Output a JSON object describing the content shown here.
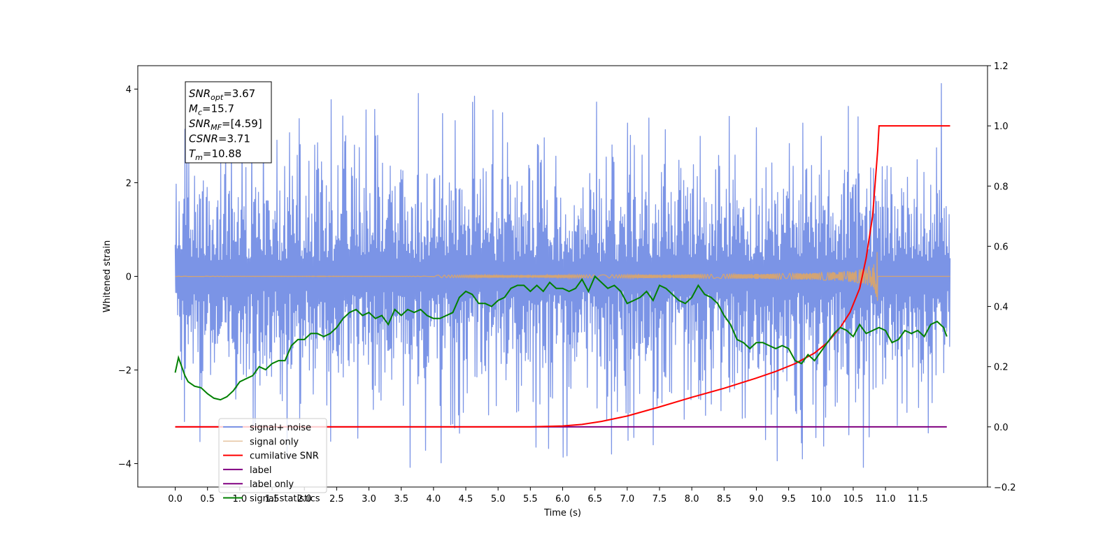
{
  "chart_data": {
    "type": "line",
    "xlabel": "Time (s)",
    "ylabel": "Whitened strain",
    "xlim": [
      -0.58,
      12.58
    ],
    "ylim": [
      -4.5,
      4.5
    ],
    "ylim_right": [
      -0.2,
      1.2
    ],
    "x_ticks": [
      0.0,
      0.5,
      1.0,
      1.5,
      2.0,
      2.5,
      3.0,
      3.5,
      4.0,
      4.5,
      5.0,
      5.5,
      6.0,
      6.5,
      7.0,
      7.5,
      8.0,
      8.5,
      9.0,
      9.5,
      10.0,
      10.5,
      11.0,
      11.5
    ],
    "x_tick_labels": [
      "0.0",
      "0.5",
      "1.0",
      "1.5",
      "2.0",
      "2.5",
      "3.0",
      "3.5",
      "4.0",
      "4.5",
      "5.0",
      "5.5",
      "6.0",
      "6.5",
      "7.0",
      "7.5",
      "8.0",
      "8.5",
      "9.0",
      "9.5",
      "10.0",
      "10.5",
      "11.0",
      "11.5"
    ],
    "y_ticks": [
      -4,
      -2,
      0,
      2,
      4
    ],
    "y_tick_labels": [
      "−4",
      "−2",
      "0",
      "2",
      "4"
    ],
    "y2_ticks": [
      -0.2,
      0.0,
      0.2,
      0.4,
      0.6,
      0.8,
      1.0,
      1.2
    ],
    "y2_tick_labels": [
      "−0.2",
      "0.0",
      "0.2",
      "0.4",
      "0.6",
      "0.8",
      "1.0",
      "1.2"
    ],
    "grid": false,
    "legend_position": "lower-left",
    "annotation": {
      "lines": [
        {
          "sym": "SNR",
          "sub": "opt",
          "rest": "=3.67"
        },
        {
          "sym": "M",
          "sub": "c",
          "rest": "=15.7"
        },
        {
          "sym": "SNR",
          "sub": "MF",
          "rest": "=[4.59]"
        },
        {
          "sym": "CSNR",
          "sub": "",
          "rest": "=3.71"
        },
        {
          "sym": "T",
          "sub": "m",
          "rest": "=10.88"
        }
      ]
    },
    "series": [
      {
        "name": "signal+ noise",
        "color": "#7b94e6",
        "axis": "left",
        "kind": "noise",
        "x_range": [
          0.0,
          12.0
        ],
        "envelope_upper": 2.6,
        "envelope_lower": -2.6,
        "max": 4.12,
        "min": -4.08
      },
      {
        "name": "signal only",
        "color": "#d8a46e",
        "axis": "left",
        "kind": "chirp",
        "x_range": [
          0.0,
          12.0
        ],
        "merger_time": 10.88,
        "peak_amplitude": 0.65
      },
      {
        "name": "cumilative SNR",
        "color": "#ff0000",
        "axis": "right",
        "x": [
          0.0,
          5.5,
          6.0,
          6.3,
          6.6,
          7.0,
          7.5,
          8.0,
          8.5,
          9.0,
          9.3,
          9.6,
          9.9,
          10.1,
          10.3,
          10.45,
          10.6,
          10.7,
          10.8,
          10.88,
          10.9,
          11.0,
          12.0
        ],
        "y": [
          0.0,
          0.0,
          0.003,
          0.008,
          0.018,
          0.036,
          0.066,
          0.098,
          0.128,
          0.162,
          0.184,
          0.21,
          0.245,
          0.28,
          0.33,
          0.38,
          0.46,
          0.56,
          0.7,
          0.92,
          1.0,
          1.0,
          1.0
        ]
      },
      {
        "name": "label",
        "color": "#800080",
        "axis": "right",
        "x": [
          0.0,
          11.95
        ],
        "y": [
          0.0,
          0.0
        ]
      },
      {
        "name": "label only",
        "color": "#800080",
        "axis": "right",
        "hidden_in_plot": true
      },
      {
        "name": "signal statistics",
        "color": "#008000",
        "axis": "right",
        "x": [
          0.0,
          0.05,
          0.1,
          0.15,
          0.2,
          0.3,
          0.4,
          0.5,
          0.6,
          0.7,
          0.8,
          0.9,
          1.0,
          1.1,
          1.2,
          1.3,
          1.4,
          1.5,
          1.6,
          1.7,
          1.8,
          1.9,
          2.0,
          2.1,
          2.2,
          2.3,
          2.4,
          2.5,
          2.6,
          2.7,
          2.8,
          2.9,
          3.0,
          3.1,
          3.2,
          3.3,
          3.4,
          3.5,
          3.6,
          3.7,
          3.8,
          3.9,
          4.0,
          4.1,
          4.2,
          4.3,
          4.4,
          4.5,
          4.6,
          4.7,
          4.8,
          4.9,
          5.0,
          5.1,
          5.2,
          5.3,
          5.4,
          5.5,
          5.6,
          5.7,
          5.8,
          5.9,
          6.0,
          6.1,
          6.2,
          6.3,
          6.4,
          6.5,
          6.6,
          6.7,
          6.8,
          6.9,
          7.0,
          7.1,
          7.2,
          7.3,
          7.4,
          7.5,
          7.6,
          7.7,
          7.8,
          7.9,
          8.0,
          8.1,
          8.2,
          8.3,
          8.4,
          8.5,
          8.6,
          8.7,
          8.8,
          8.9,
          9.0,
          9.1,
          9.2,
          9.3,
          9.4,
          9.5,
          9.6,
          9.7,
          9.8,
          9.9,
          10.0,
          10.1,
          10.2,
          10.3,
          10.4,
          10.5,
          10.6,
          10.7,
          10.8,
          10.9,
          11.0,
          11.1,
          11.2,
          11.3,
          11.4,
          11.5,
          11.6,
          11.7,
          11.8,
          11.9,
          11.95
        ],
        "y": [
          0.18,
          0.23,
          0.2,
          0.17,
          0.15,
          0.135,
          0.13,
          0.11,
          0.095,
          0.09,
          0.1,
          0.12,
          0.15,
          0.16,
          0.17,
          0.2,
          0.19,
          0.21,
          0.22,
          0.22,
          0.27,
          0.29,
          0.29,
          0.31,
          0.31,
          0.3,
          0.31,
          0.33,
          0.36,
          0.38,
          0.39,
          0.37,
          0.38,
          0.36,
          0.37,
          0.34,
          0.39,
          0.37,
          0.39,
          0.38,
          0.39,
          0.37,
          0.36,
          0.36,
          0.37,
          0.38,
          0.43,
          0.45,
          0.44,
          0.41,
          0.41,
          0.4,
          0.42,
          0.43,
          0.46,
          0.47,
          0.47,
          0.45,
          0.47,
          0.45,
          0.48,
          0.46,
          0.46,
          0.45,
          0.46,
          0.49,
          0.45,
          0.5,
          0.48,
          0.46,
          0.47,
          0.45,
          0.41,
          0.42,
          0.43,
          0.45,
          0.42,
          0.47,
          0.46,
          0.44,
          0.42,
          0.41,
          0.43,
          0.47,
          0.44,
          0.43,
          0.41,
          0.37,
          0.34,
          0.29,
          0.28,
          0.26,
          0.28,
          0.28,
          0.27,
          0.26,
          0.27,
          0.26,
          0.22,
          0.21,
          0.24,
          0.22,
          0.25,
          0.28,
          0.31,
          0.33,
          0.32,
          0.3,
          0.34,
          0.31,
          0.32,
          0.33,
          0.32,
          0.28,
          0.29,
          0.32,
          0.31,
          0.32,
          0.3,
          0.34,
          0.35,
          0.33,
          0.3
        ]
      }
    ]
  }
}
